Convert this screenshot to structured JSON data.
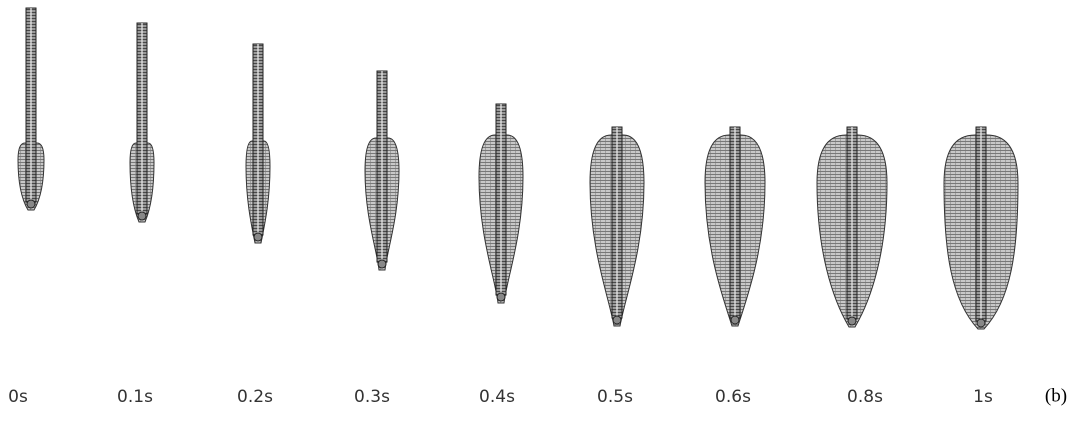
{
  "frames": [
    {
      "label": "0s"
    },
    {
      "label": "0.1s"
    },
    {
      "label": "0.2s"
    },
    {
      "label": "0.3s"
    },
    {
      "label": "0.4s"
    },
    {
      "label": "0.5s"
    },
    {
      "label": "0.6s"
    },
    {
      "label": "0.8s"
    },
    {
      "label": "1s"
    }
  ],
  "panel_label": "(b)"
}
